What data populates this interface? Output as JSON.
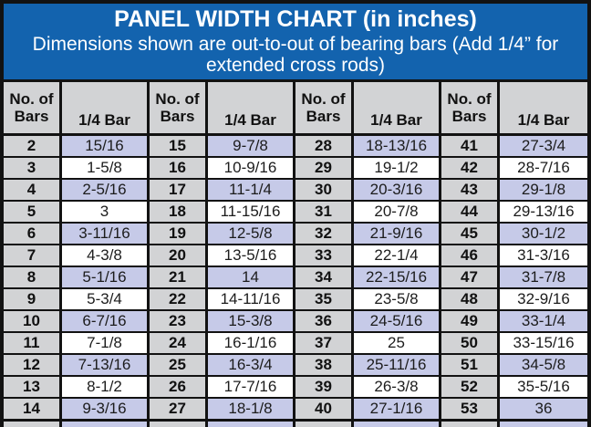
{
  "header": {
    "title": "PANEL WIDTH CHART (in inches)",
    "subtitle": "Dimensions shown are out-to-out of bearing bars (Add 1/4” for extended cross rods)"
  },
  "columns": {
    "bars_label": "No. of Bars",
    "quarter_label": "1/4 Bar"
  },
  "colors": {
    "banner_blue": "#1363ae",
    "header_gray": "#d2d3d5",
    "row_lavender": "#c6cae8",
    "row_white": "#ffffff",
    "border_black": "#121212",
    "banner_text": "#ffffff"
  },
  "table": {
    "groups": [
      {
        "rows": [
          {
            "bars": "2",
            "width": "15/16"
          },
          {
            "bars": "3",
            "width": "1-5/8"
          },
          {
            "bars": "4",
            "width": "2-5/16"
          },
          {
            "bars": "5",
            "width": "3"
          },
          {
            "bars": "6",
            "width": "3-11/16"
          },
          {
            "bars": "7",
            "width": "4-3/8"
          },
          {
            "bars": "8",
            "width": "5-1/16"
          },
          {
            "bars": "9",
            "width": "5-3/4"
          },
          {
            "bars": "10",
            "width": "6-7/16"
          },
          {
            "bars": "11",
            "width": "7-1/8"
          },
          {
            "bars": "12",
            "width": "7-13/16"
          },
          {
            "bars": "13",
            "width": "8-1/2"
          },
          {
            "bars": "14",
            "width": "9-3/16"
          }
        ]
      },
      {
        "rows": [
          {
            "bars": "15",
            "width": "9-7/8"
          },
          {
            "bars": "16",
            "width": "10-9/16"
          },
          {
            "bars": "17",
            "width": "11-1/4"
          },
          {
            "bars": "18",
            "width": "11-15/16"
          },
          {
            "bars": "19",
            "width": "12-5/8"
          },
          {
            "bars": "20",
            "width": "13-5/16"
          },
          {
            "bars": "21",
            "width": "14"
          },
          {
            "bars": "22",
            "width": "14-11/16"
          },
          {
            "bars": "23",
            "width": "15-3/8"
          },
          {
            "bars": "24",
            "width": "16-1/16"
          },
          {
            "bars": "25",
            "width": "16-3/4"
          },
          {
            "bars": "26",
            "width": "17-7/16"
          },
          {
            "bars": "27",
            "width": "18-1/8"
          }
        ]
      },
      {
        "rows": [
          {
            "bars": "28",
            "width": "18-13/16"
          },
          {
            "bars": "29",
            "width": "19-1/2"
          },
          {
            "bars": "30",
            "width": "20-3/16"
          },
          {
            "bars": "31",
            "width": "20-7/8"
          },
          {
            "bars": "32",
            "width": "21-9/16"
          },
          {
            "bars": "33",
            "width": "22-1/4"
          },
          {
            "bars": "34",
            "width": "22-15/16"
          },
          {
            "bars": "35",
            "width": "23-5/8"
          },
          {
            "bars": "36",
            "width": "24-5/16"
          },
          {
            "bars": "37",
            "width": "25"
          },
          {
            "bars": "38",
            "width": "25-11/16"
          },
          {
            "bars": "39",
            "width": "26-3/8"
          },
          {
            "bars": "40",
            "width": "27-1/16"
          }
        ]
      },
      {
        "rows": [
          {
            "bars": "41",
            "width": "27-3/4"
          },
          {
            "bars": "42",
            "width": "28-7/16"
          },
          {
            "bars": "43",
            "width": "29-1/8"
          },
          {
            "bars": "44",
            "width": "29-13/16"
          },
          {
            "bars": "45",
            "width": "30-1/2"
          },
          {
            "bars": "46",
            "width": "31-3/16"
          },
          {
            "bars": "47",
            "width": "31-7/8"
          },
          {
            "bars": "48",
            "width": "32-9/16"
          },
          {
            "bars": "49",
            "width": "33-1/4"
          },
          {
            "bars": "50",
            "width": "33-15/16"
          },
          {
            "bars": "51",
            "width": "34-5/8"
          },
          {
            "bars": "52",
            "width": "35-5/16"
          },
          {
            "bars": "53",
            "width": "36"
          }
        ]
      }
    ]
  }
}
